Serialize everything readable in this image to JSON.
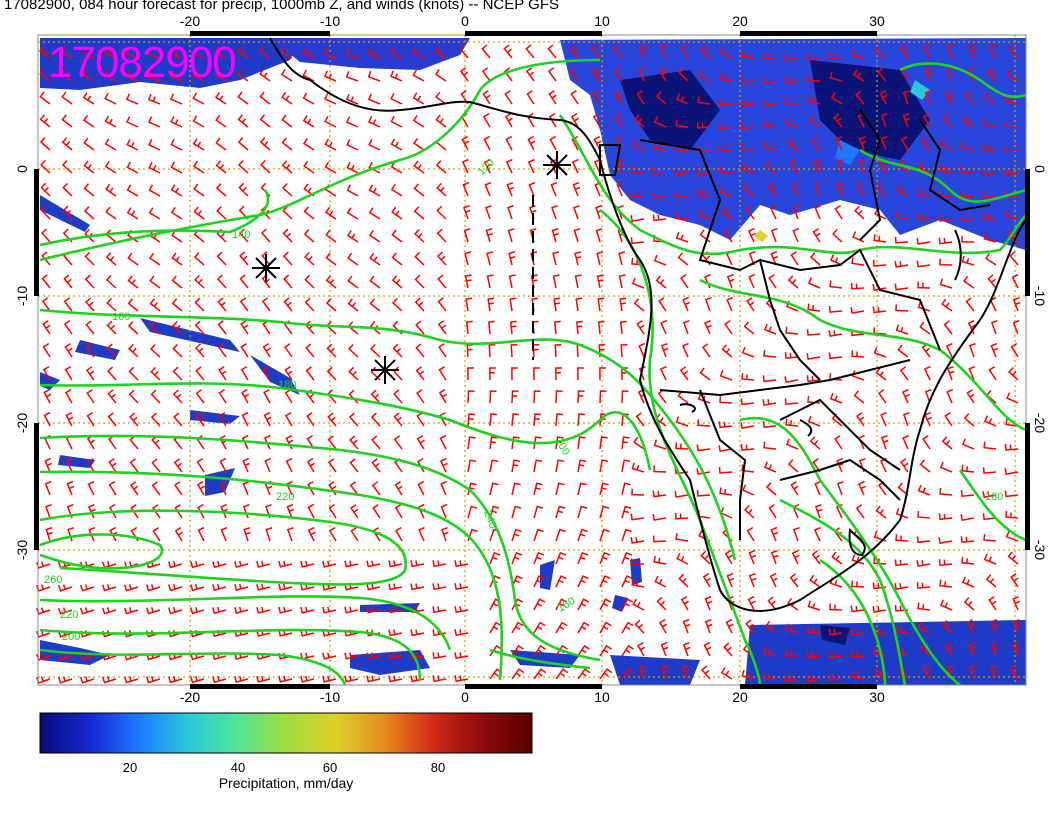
{
  "title": "17082900, 084 hour forecast for precip, 1000mb Z, and winds (knots) -- NCEP GFS",
  "stamp": "17082900",
  "axes": {
    "lon_ticks": [
      "-20",
      "-10",
      "0",
      "10",
      "20",
      "30"
    ],
    "lat_ticks": [
      "0",
      "-10",
      "-20",
      "-30"
    ]
  },
  "contour_labels": [
    "120",
    "140",
    "160",
    "180",
    "200",
    "220",
    "240",
    "260",
    "160",
    "200",
    "220",
    "180"
  ],
  "colorbar": {
    "title": "Precipitation, mm/day",
    "ticks": [
      "20",
      "40",
      "60",
      "80"
    ],
    "colors": [
      "#0a0a78",
      "#1428d2",
      "#1e78ff",
      "#28c8dc",
      "#50e696",
      "#a0dc3c",
      "#dcd228",
      "#e68c1e",
      "#d22814",
      "#8c0a0a",
      "#5a0000"
    ]
  },
  "colors": {
    "wind_barbs": "#ff0000",
    "contours": "#1ed21e",
    "grid": "#d2a000",
    "coast": "#000000",
    "stamp": "#ff00ff"
  },
  "markers": [
    "tropical-cyclone-symbol",
    "tropical-cyclone-symbol",
    "tropical-cyclone-symbol"
  ]
}
